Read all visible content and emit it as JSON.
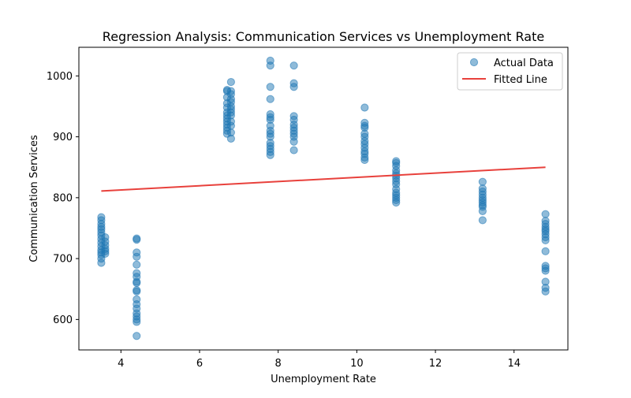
{
  "chart_data": {
    "type": "scatter",
    "title": "Regression Analysis: Communication Services vs Unemployment Rate",
    "xlabel": "Unemployment Rate",
    "ylabel": "Communication Services",
    "xlim": [
      2.93,
      15.37
    ],
    "ylim": [
      550,
      1047
    ],
    "xticks": [
      4,
      6,
      8,
      10,
      12,
      14
    ],
    "yticks": [
      600,
      700,
      800,
      900,
      1000
    ],
    "grid": false,
    "legend": {
      "placement": "top-right"
    },
    "colors": {
      "points": "#1f77b4",
      "line": "#e8413c"
    },
    "series": [
      {
        "name": "Actual Data",
        "kind": "scatter",
        "points": [
          [
            3.5,
            768
          ],
          [
            3.5,
            763
          ],
          [
            3.5,
            757
          ],
          [
            3.5,
            752
          ],
          [
            3.5,
            748
          ],
          [
            3.5,
            743
          ],
          [
            3.5,
            738
          ],
          [
            3.5,
            732
          ],
          [
            3.5,
            726
          ],
          [
            3.5,
            720
          ],
          [
            3.5,
            714
          ],
          [
            3.5,
            710
          ],
          [
            3.5,
            706
          ],
          [
            3.5,
            700
          ],
          [
            3.5,
            693
          ],
          [
            3.6,
            735
          ],
          [
            3.6,
            728
          ],
          [
            3.6,
            722
          ],
          [
            3.6,
            716
          ],
          [
            3.6,
            712
          ],
          [
            3.6,
            708
          ],
          [
            4.4,
            733
          ],
          [
            4.4,
            731
          ],
          [
            4.4,
            710
          ],
          [
            4.4,
            703
          ],
          [
            4.4,
            690
          ],
          [
            4.4,
            676
          ],
          [
            4.4,
            670
          ],
          [
            4.4,
            662
          ],
          [
            4.4,
            660
          ],
          [
            4.4,
            648
          ],
          [
            4.4,
            646
          ],
          [
            4.4,
            633
          ],
          [
            4.4,
            625
          ],
          [
            4.4,
            618
          ],
          [
            4.4,
            610
          ],
          [
            4.4,
            605
          ],
          [
            4.4,
            600
          ],
          [
            4.4,
            596
          ],
          [
            4.4,
            573
          ],
          [
            6.7,
            977
          ],
          [
            6.7,
            975
          ],
          [
            6.7,
            965
          ],
          [
            6.7,
            955
          ],
          [
            6.7,
            948
          ],
          [
            6.7,
            940
          ],
          [
            6.7,
            935
          ],
          [
            6.7,
            930
          ],
          [
            6.7,
            925
          ],
          [
            6.7,
            920
          ],
          [
            6.7,
            915
          ],
          [
            6.7,
            910
          ],
          [
            6.7,
            905
          ],
          [
            6.8,
            990
          ],
          [
            6.8,
            975
          ],
          [
            6.8,
            970
          ],
          [
            6.8,
            962
          ],
          [
            6.8,
            957
          ],
          [
            6.8,
            950
          ],
          [
            6.8,
            945
          ],
          [
            6.8,
            940
          ],
          [
            6.8,
            935
          ],
          [
            6.8,
            925
          ],
          [
            6.8,
            918
          ],
          [
            6.8,
            907
          ],
          [
            6.8,
            897
          ],
          [
            7.8,
            1025
          ],
          [
            7.8,
            1017
          ],
          [
            7.8,
            982
          ],
          [
            7.8,
            962
          ],
          [
            7.8,
            937
          ],
          [
            7.8,
            932
          ],
          [
            7.8,
            928
          ],
          [
            7.8,
            918
          ],
          [
            7.8,
            910
          ],
          [
            7.8,
            905
          ],
          [
            7.8,
            900
          ],
          [
            7.8,
            890
          ],
          [
            7.8,
            885
          ],
          [
            7.8,
            880
          ],
          [
            7.8,
            875
          ],
          [
            7.8,
            870
          ],
          [
            8.4,
            1017
          ],
          [
            8.4,
            988
          ],
          [
            8.4,
            982
          ],
          [
            8.4,
            934
          ],
          [
            8.4,
            928
          ],
          [
            8.4,
            920
          ],
          [
            8.4,
            915
          ],
          [
            8.4,
            910
          ],
          [
            8.4,
            905
          ],
          [
            8.4,
            900
          ],
          [
            8.4,
            892
          ],
          [
            8.4,
            878
          ],
          [
            10.2,
            948
          ],
          [
            10.2,
            923
          ],
          [
            10.2,
            918
          ],
          [
            10.2,
            915
          ],
          [
            10.2,
            905
          ],
          [
            10.2,
            900
          ],
          [
            10.2,
            893
          ],
          [
            10.2,
            888
          ],
          [
            10.2,
            882
          ],
          [
            10.2,
            876
          ],
          [
            10.2,
            872
          ],
          [
            10.2,
            866
          ],
          [
            10.2,
            862
          ],
          [
            11.0,
            860
          ],
          [
            11.0,
            857
          ],
          [
            11.0,
            852
          ],
          [
            11.0,
            845
          ],
          [
            11.0,
            840
          ],
          [
            11.0,
            836
          ],
          [
            11.0,
            832
          ],
          [
            11.0,
            827
          ],
          [
            11.0,
            822
          ],
          [
            11.0,
            814
          ],
          [
            11.0,
            808
          ],
          [
            11.0,
            804
          ],
          [
            11.0,
            800
          ],
          [
            11.0,
            796
          ],
          [
            11.0,
            792
          ],
          [
            13.2,
            826
          ],
          [
            13.2,
            815
          ],
          [
            13.2,
            810
          ],
          [
            13.2,
            805
          ],
          [
            13.2,
            800
          ],
          [
            13.2,
            796
          ],
          [
            13.2,
            792
          ],
          [
            13.2,
            788
          ],
          [
            13.2,
            785
          ],
          [
            13.2,
            778
          ],
          [
            13.2,
            763
          ],
          [
            14.8,
            773
          ],
          [
            14.8,
            762
          ],
          [
            14.8,
            757
          ],
          [
            14.8,
            752
          ],
          [
            14.8,
            748
          ],
          [
            14.8,
            745
          ],
          [
            14.8,
            740
          ],
          [
            14.8,
            735
          ],
          [
            14.8,
            730
          ],
          [
            14.8,
            712
          ],
          [
            14.8,
            688
          ],
          [
            14.8,
            684
          ],
          [
            14.8,
            680
          ],
          [
            14.8,
            662
          ],
          [
            14.8,
            652
          ],
          [
            14.8,
            646
          ]
        ]
      },
      {
        "name": "Fitted Line",
        "kind": "line",
        "points": [
          [
            3.5,
            811
          ],
          [
            14.8,
            850
          ]
        ]
      }
    ]
  }
}
